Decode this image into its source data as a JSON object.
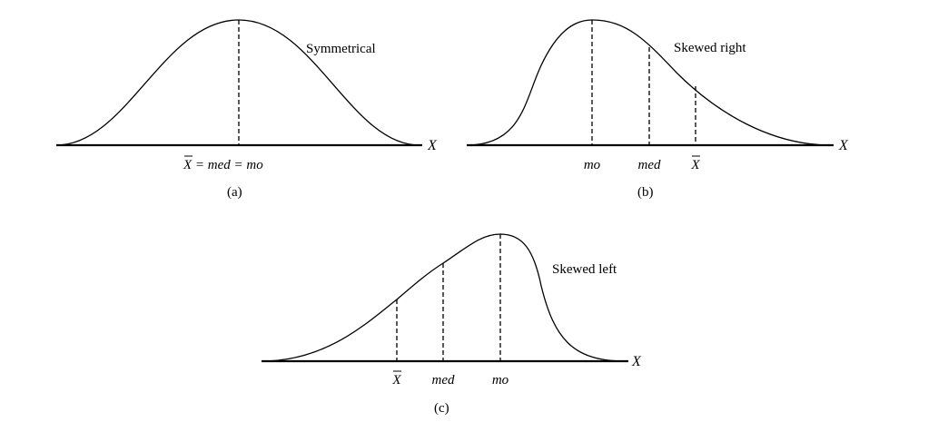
{
  "panels": {
    "a": {
      "title": "Symmetrical",
      "axis_label": "X",
      "caption": "(a)",
      "markers": [
        {
          "label": "X = med = mo",
          "text_xbar": "X",
          "text_rest": " = med = mo"
        }
      ]
    },
    "b": {
      "title": "Skewed right",
      "axis_label": "X",
      "caption": "(b)",
      "markers": [
        {
          "label": "mo"
        },
        {
          "label": "med"
        },
        {
          "label": "X"
        }
      ]
    },
    "c": {
      "title": "Skewed left",
      "axis_label": "X",
      "caption": "(c)",
      "markers": [
        {
          "label": "X"
        },
        {
          "label": "med"
        },
        {
          "label": "mo"
        }
      ]
    }
  }
}
